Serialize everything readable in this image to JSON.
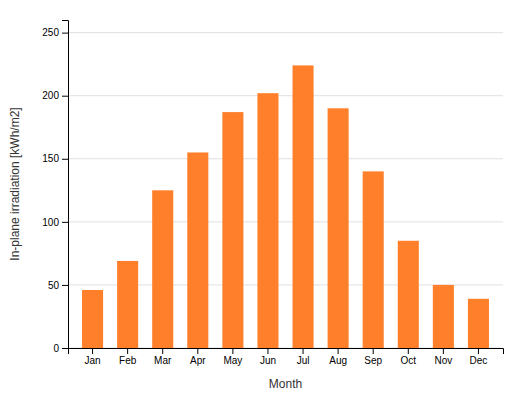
{
  "chart_data": {
    "type": "bar",
    "categories": [
      "Jan",
      "Feb",
      "Mar",
      "Apr",
      "May",
      "Jun",
      "Jul",
      "Aug",
      "Sep",
      "Oct",
      "Nov",
      "Dec"
    ],
    "values": [
      46,
      69,
      125,
      155,
      187,
      202,
      224,
      190,
      140,
      85,
      50,
      39
    ],
    "color": "#FF7F2A",
    "xlabel": "Month",
    "ylabel": "In-plane irradiation [kWh/m2]",
    "ylim": [
      0,
      260
    ],
    "yticks": [
      0,
      50,
      100,
      150,
      200,
      250
    ],
    "grid": true
  }
}
